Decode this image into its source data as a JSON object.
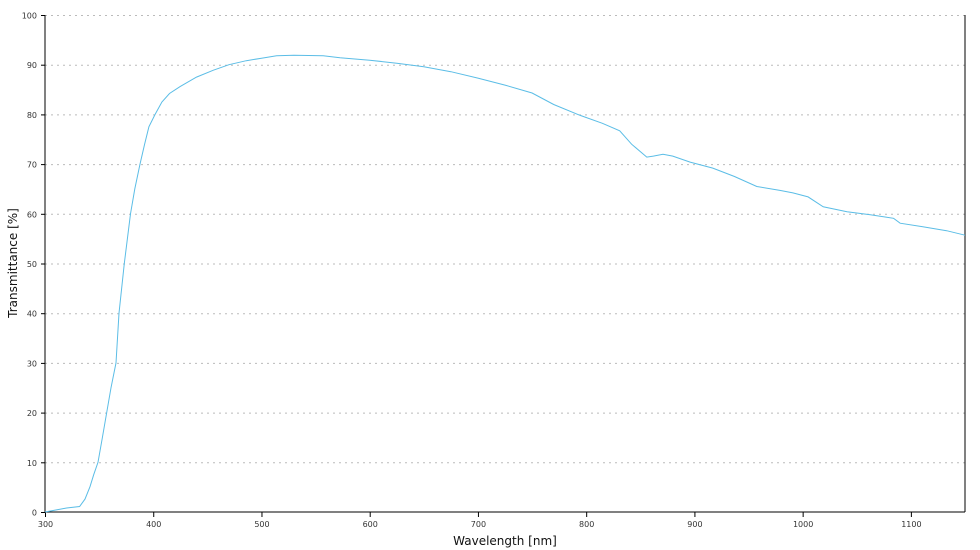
{
  "chart_data": {
    "type": "line",
    "title": "",
    "xlabel": "Wavelength [nm]",
    "ylabel": "Transmittance [%]",
    "xlim": [
      300,
      1150
    ],
    "ylim": [
      0,
      100
    ],
    "xticks": [
      300,
      400,
      500,
      600,
      700,
      800,
      900,
      1000,
      1100
    ],
    "yticks": [
      0,
      10,
      20,
      30,
      40,
      50,
      60,
      70,
      80,
      90,
      100
    ],
    "grid": "horizontal dotted",
    "legend": "none",
    "series": [
      {
        "color": "#5bbde6",
        "x": [
          300,
          310,
          320,
          332,
          337,
          341.6,
          345,
          349,
          353,
          357,
          361,
          365.6,
          368.4,
          373.3,
          379,
          383,
          387.8,
          392,
          396,
          401.7,
          408,
          415,
          424.8,
          440,
          455.6,
          470,
          486,
          500,
          514,
          530,
          557,
          572.6,
          600,
          625,
          650,
          675,
          700,
          725,
          750,
          770,
          794.5,
          815,
          831,
          842,
          856,
          862,
          871,
          880,
          896,
          917,
          937,
          957.6,
          979,
          991,
          1005,
          1019,
          1041,
          1062.5,
          1084,
          1090,
          1111,
          1133,
          1150
        ],
        "y": [
          0,
          0.4,
          0.8,
          1.1,
          2.6,
          5.1,
          7.5,
          10,
          15,
          20,
          25,
          30,
          40,
          50,
          60,
          65,
          70,
          74,
          77.5,
          80,
          82.5,
          84.2,
          85.6,
          87.5,
          88.9,
          90,
          90.8,
          91.3,
          91.8,
          91.9,
          91.8,
          91.4,
          90.9,
          90.3,
          89.6,
          88.6,
          87.3,
          85.9,
          84.3,
          82,
          79.8,
          78.2,
          76.7,
          74,
          71.4,
          71.6,
          72,
          71.6,
          70.4,
          69.2,
          67.5,
          65.5,
          64.7,
          64.2,
          63.4,
          61.4,
          60.4,
          59.8,
          59.1,
          58.1,
          57.4,
          56.6,
          55.7
        ]
      }
    ]
  }
}
